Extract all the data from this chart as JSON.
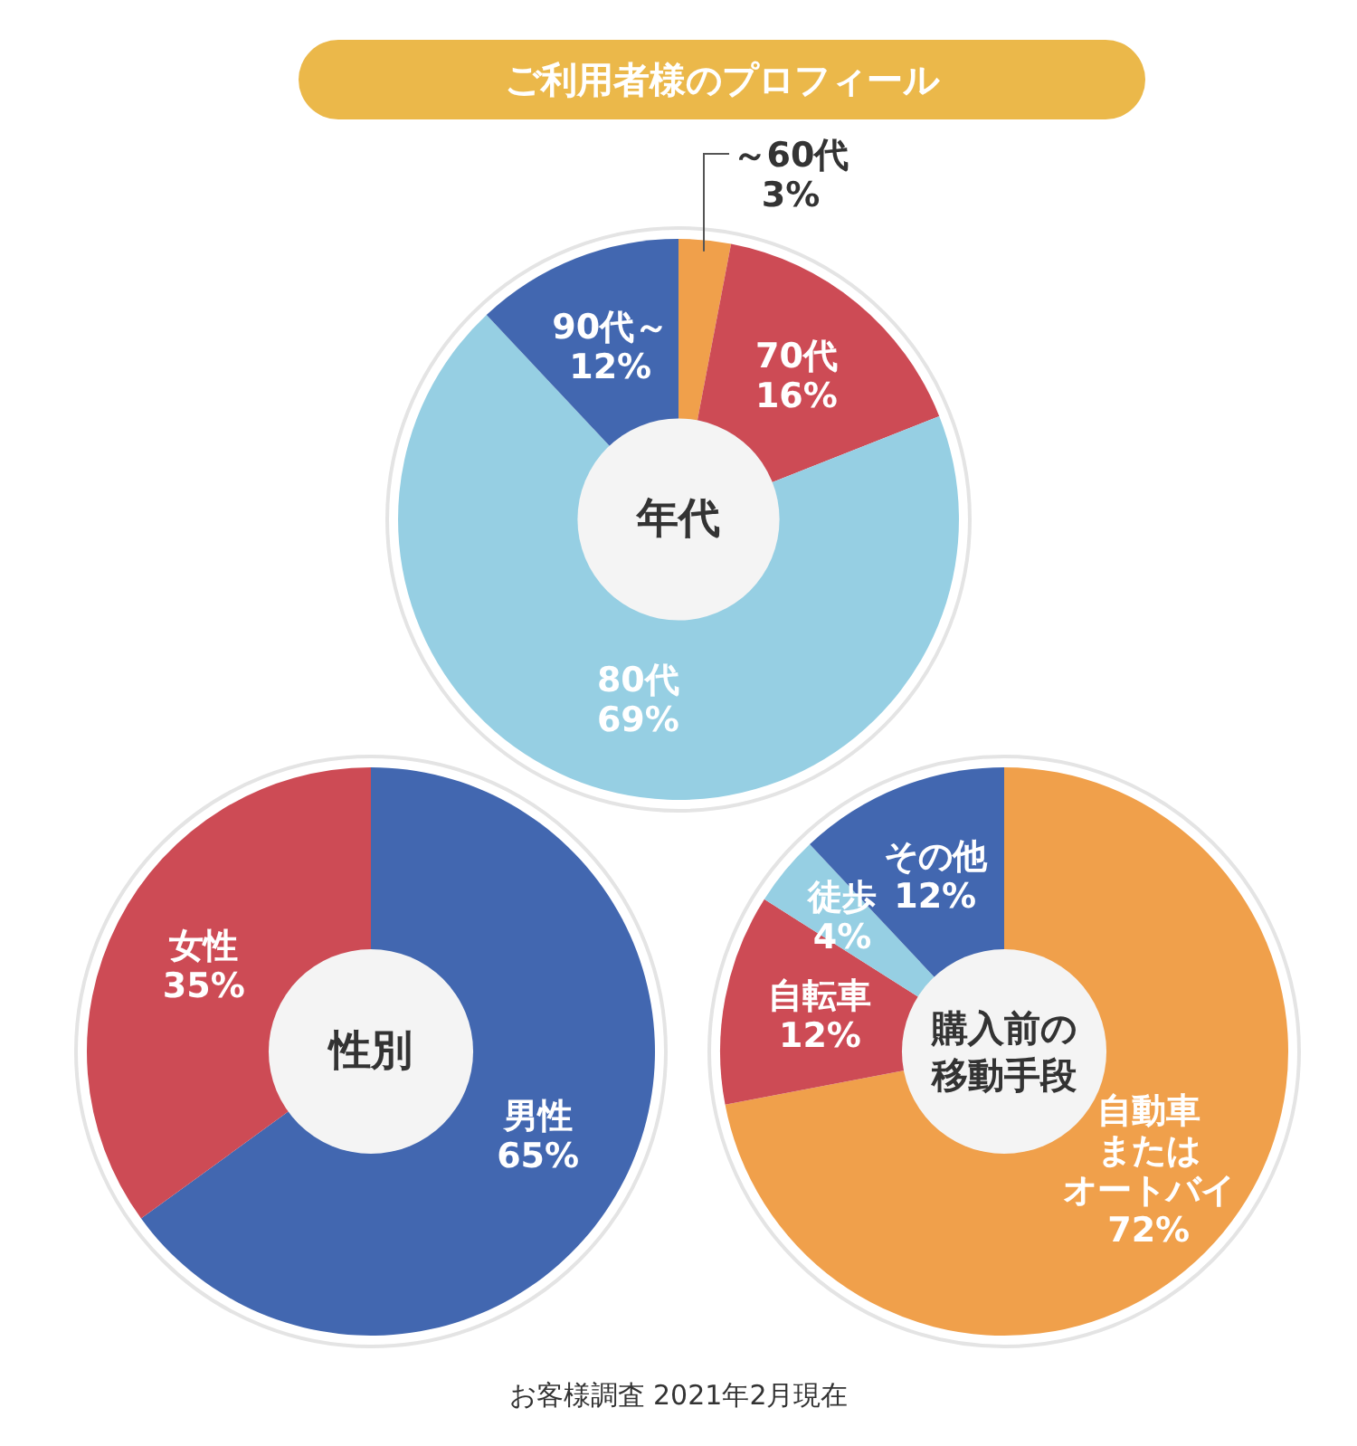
{
  "chart_data": [
    {
      "type": "donut",
      "title": "年代",
      "annotations": [
        "ご利用者様のプロフィール"
      ],
      "categories": [
        "～60代",
        "70代",
        "80代",
        "90代～"
      ],
      "values": [
        3,
        16,
        69,
        12
      ],
      "colors": [
        "#f0a04b",
        "#cd4b55",
        "#96cfe3",
        "#4267b0"
      ],
      "value_labels": [
        "3%",
        "16%",
        "69%",
        "12%"
      ]
    },
    {
      "type": "donut",
      "title": "性別",
      "categories": [
        "男性",
        "女性"
      ],
      "values": [
        65,
        35
      ],
      "colors": [
        "#4267b0",
        "#cd4b55"
      ],
      "value_labels": [
        "65%",
        "35%"
      ]
    },
    {
      "type": "donut",
      "title": "購入前の移動手段",
      "annotations": [
        "お客様調査 2021年2月現在"
      ],
      "categories": [
        "自動車またはオートバイ",
        "自転車",
        "徒歩",
        "その他"
      ],
      "values": [
        72,
        12,
        4,
        12
      ],
      "colors": [
        "#f0a04b",
        "#cd4b55",
        "#96cfe3",
        "#4267b0"
      ],
      "value_labels": [
        "72%",
        "12%",
        "4%",
        "12%"
      ]
    }
  ]
}
